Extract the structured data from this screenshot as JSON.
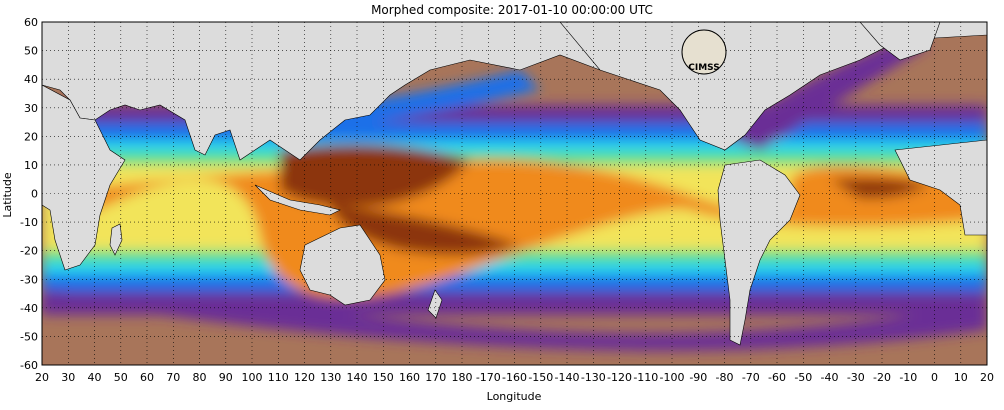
{
  "figure": {
    "title": "Morphed composite: 2017-01-10 00:00:00 UTC",
    "x_axis_label": "Longitude",
    "y_axis_label": "Latitude",
    "x_tick_labels": [
      "20",
      "30",
      "40",
      "50",
      "60",
      "70",
      "80",
      "90",
      "100",
      "110",
      "120",
      "130",
      "140",
      "150",
      "160",
      "170",
      "180",
      "-170",
      "-160",
      "-150",
      "-140",
      "-130",
      "-120",
      "-110",
      "-100",
      "-90",
      "-80",
      "-70",
      "-60",
      "-50",
      "-40",
      "-30",
      "-20",
      "-10",
      "0",
      "10",
      "20"
    ],
    "y_tick_labels": [
      "60",
      "50",
      "40",
      "30",
      "20",
      "10",
      "0",
      "-10",
      "-20",
      "-30",
      "-40",
      "-50",
      "-60"
    ],
    "logo_text": "CIMSS"
  },
  "map": {
    "projection": "equirectangular",
    "lon_range": [
      20,
      380
    ],
    "lat_range": [
      -60,
      60
    ],
    "grid": "dotted",
    "colors": {
      "land": "#dcdcdc",
      "dry": "#a8755a",
      "purple": "#6a2f96",
      "blue": "#1f6fe8",
      "cyan": "#27d2f0",
      "green": "#58e08a",
      "yellow": "#f2e45a",
      "orange": "#f08a1e",
      "brown": "#8c3608"
    }
  }
}
